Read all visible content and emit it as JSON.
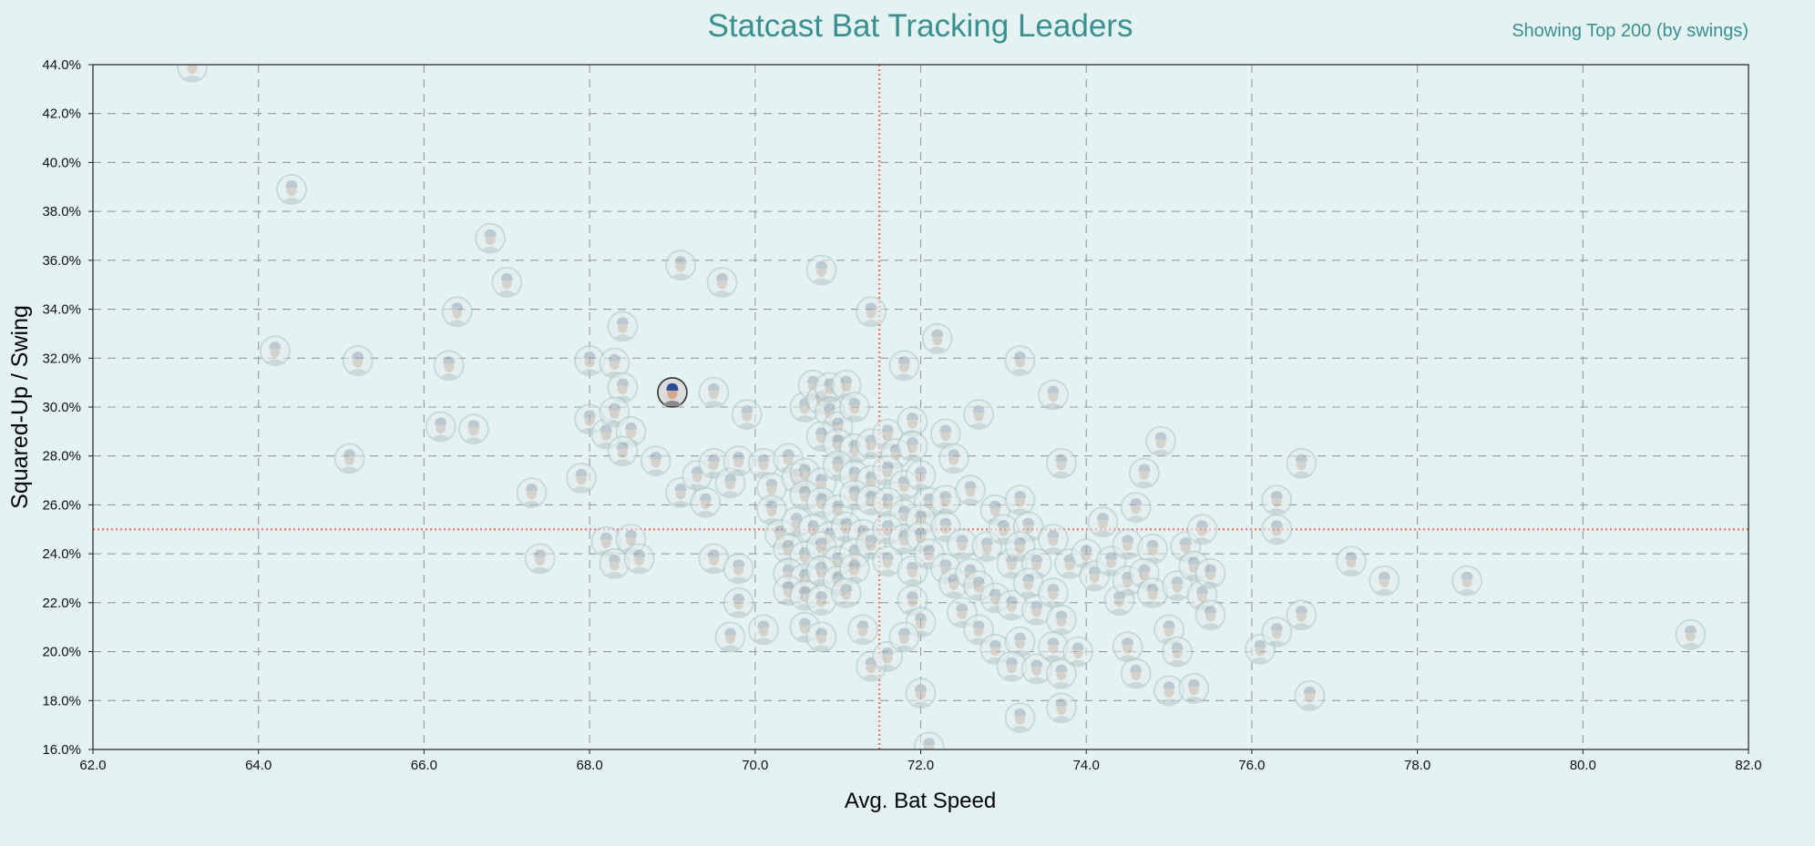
{
  "chart_data": {
    "type": "scatter",
    "title": "Statcast Bat Tracking Leaders",
    "subtitle": "Showing Top 200 (by swings)",
    "xlabel": "Avg. Bat Speed",
    "ylabel": "Squared-Up / Swing",
    "xlim": [
      62,
      82
    ],
    "ylim": [
      16,
      44
    ],
    "x_ticks": [
      "62.0",
      "64.0",
      "66.0",
      "68.0",
      "70.0",
      "72.0",
      "74.0",
      "76.0",
      "78.0",
      "80.0",
      "82.0"
    ],
    "y_ticks": [
      "16.0%",
      "18.0%",
      "20.0%",
      "22.0%",
      "24.0%",
      "26.0%",
      "28.0%",
      "30.0%",
      "32.0%",
      "34.0%",
      "36.0%",
      "38.0%",
      "40.0%",
      "42.0%",
      "44.0%"
    ],
    "grid": true,
    "reference_lines": {
      "x": 71.5,
      "y": 25.0
    },
    "colors": {
      "title": "#3a9090",
      "reference_line": "#f07a70",
      "grid": "#999999",
      "marker_ring": "#a8c8c8",
      "highlight_ring": "#333333",
      "highlight_cap": "#2a4a9a"
    },
    "highlighted_point": {
      "x": 69.0,
      "y": 30.6
    },
    "points": [
      [
        63.2,
        43.9
      ],
      [
        64.4,
        38.9
      ],
      [
        66.8,
        36.9
      ],
      [
        67.0,
        35.1
      ],
      [
        66.4,
        33.9
      ],
      [
        64.2,
        32.3
      ],
      [
        65.2,
        31.9
      ],
      [
        66.3,
        31.7
      ],
      [
        65.1,
        27.9
      ],
      [
        66.2,
        29.2
      ],
      [
        66.6,
        29.1
      ],
      [
        67.3,
        26.5
      ],
      [
        67.4,
        23.8
      ],
      [
        67.9,
        27.1
      ],
      [
        68.0,
        31.9
      ],
      [
        68.3,
        31.8
      ],
      [
        68.4,
        33.3
      ],
      [
        68.4,
        30.8
      ],
      [
        68.0,
        29.5
      ],
      [
        68.2,
        28.9
      ],
      [
        68.3,
        29.8
      ],
      [
        68.5,
        29.0
      ],
      [
        68.4,
        28.2
      ],
      [
        68.8,
        27.8
      ],
      [
        68.2,
        24.5
      ],
      [
        68.5,
        24.6
      ],
      [
        68.3,
        23.6
      ],
      [
        68.6,
        23.8
      ],
      [
        69.1,
        35.8
      ],
      [
        69.6,
        35.1
      ],
      [
        70.8,
        35.6
      ],
      [
        71.4,
        33.9
      ],
      [
        72.2,
        32.8
      ],
      [
        73.2,
        31.9
      ],
      [
        73.6,
        30.5
      ],
      [
        72.7,
        29.7
      ],
      [
        72.3,
        28.9
      ],
      [
        71.8,
        31.7
      ],
      [
        69.5,
        30.6
      ],
      [
        69.9,
        29.7
      ],
      [
        69.1,
        26.5
      ],
      [
        69.3,
        27.2
      ],
      [
        69.5,
        27.7
      ],
      [
        69.7,
        26.9
      ],
      [
        69.8,
        27.8
      ],
      [
        69.4,
        26.1
      ],
      [
        69.5,
        23.8
      ],
      [
        69.8,
        23.4
      ],
      [
        69.8,
        22.0
      ],
      [
        69.7,
        20.6
      ],
      [
        70.1,
        20.9
      ],
      [
        70.1,
        27.7
      ],
      [
        70.2,
        26.7
      ],
      [
        70.2,
        25.8
      ],
      [
        70.3,
        24.8
      ],
      [
        70.4,
        27.9
      ],
      [
        70.5,
        27.1
      ],
      [
        70.6,
        30.0
      ],
      [
        70.7,
        30.9
      ],
      [
        70.8,
        30.3
      ],
      [
        70.9,
        29.8
      ],
      [
        70.9,
        30.8
      ],
      [
        71.0,
        29.2
      ],
      [
        71.1,
        30.9
      ],
      [
        71.2,
        30.0
      ],
      [
        70.8,
        28.8
      ],
      [
        71.0,
        28.5
      ],
      [
        71.2,
        28.3
      ],
      [
        71.4,
        28.5
      ],
      [
        70.6,
        27.3
      ],
      [
        70.8,
        26.9
      ],
      [
        71.0,
        27.6
      ],
      [
        71.2,
        27.2
      ],
      [
        71.4,
        27.0
      ],
      [
        70.6,
        26.4
      ],
      [
        70.8,
        26.1
      ],
      [
        71.0,
        25.8
      ],
      [
        71.2,
        26.4
      ],
      [
        71.4,
        26.2
      ],
      [
        70.5,
        25.3
      ],
      [
        70.7,
        25.0
      ],
      [
        70.9,
        24.7
      ],
      [
        71.1,
        25.1
      ],
      [
        71.3,
        24.8
      ],
      [
        70.4,
        24.2
      ],
      [
        70.6,
        23.9
      ],
      [
        70.8,
        24.3
      ],
      [
        71.0,
        23.7
      ],
      [
        71.2,
        24.0
      ],
      [
        71.4,
        24.4
      ],
      [
        70.4,
        23.2
      ],
      [
        70.6,
        23.0
      ],
      [
        70.8,
        23.3
      ],
      [
        71.0,
        22.9
      ],
      [
        71.2,
        23.4
      ],
      [
        70.4,
        22.5
      ],
      [
        70.6,
        22.3
      ],
      [
        70.8,
        22.1
      ],
      [
        71.1,
        22.4
      ],
      [
        70.6,
        21.0
      ],
      [
        70.8,
        20.6
      ],
      [
        71.3,
        20.9
      ],
      [
        71.4,
        19.4
      ],
      [
        71.6,
        19.8
      ],
      [
        71.6,
        28.9
      ],
      [
        71.7,
        28.1
      ],
      [
        71.6,
        27.4
      ],
      [
        71.8,
        26.8
      ],
      [
        71.6,
        26.1
      ],
      [
        71.8,
        25.6
      ],
      [
        71.6,
        25.0
      ],
      [
        71.8,
        24.6
      ],
      [
        71.6,
        23.7
      ],
      [
        71.9,
        23.3
      ],
      [
        71.9,
        29.4
      ],
      [
        71.9,
        28.4
      ],
      [
        72.0,
        27.2
      ],
      [
        72.1,
        26.1
      ],
      [
        72.0,
        25.4
      ],
      [
        72.0,
        24.7
      ],
      [
        72.1,
        24.0
      ],
      [
        71.9,
        22.1
      ],
      [
        72.0,
        21.2
      ],
      [
        71.8,
        20.6
      ],
      [
        72.0,
        18.3
      ],
      [
        72.1,
        16.1
      ],
      [
        72.3,
        26.2
      ],
      [
        72.4,
        27.9
      ],
      [
        72.3,
        25.1
      ],
      [
        72.5,
        24.4
      ],
      [
        72.3,
        23.4
      ],
      [
        72.4,
        22.8
      ],
      [
        72.6,
        23.2
      ],
      [
        72.5,
        21.6
      ],
      [
        72.7,
        22.7
      ],
      [
        72.6,
        26.6
      ],
      [
        72.8,
        24.3
      ],
      [
        72.7,
        20.9
      ],
      [
        72.9,
        25.8
      ],
      [
        73.0,
        25.0
      ],
      [
        73.1,
        23.6
      ],
      [
        72.9,
        22.2
      ],
      [
        73.1,
        21.9
      ],
      [
        72.9,
        20.1
      ],
      [
        73.2,
        26.2
      ],
      [
        73.3,
        25.1
      ],
      [
        73.2,
        24.3
      ],
      [
        73.4,
        23.6
      ],
      [
        73.3,
        22.8
      ],
      [
        73.4,
        21.7
      ],
      [
        73.2,
        20.4
      ],
      [
        73.1,
        19.4
      ],
      [
        73.4,
        19.3
      ],
      [
        73.2,
        17.3
      ],
      [
        73.6,
        24.6
      ],
      [
        73.6,
        22.4
      ],
      [
        73.7,
        21.3
      ],
      [
        73.6,
        20.2
      ],
      [
        73.7,
        19.1
      ],
      [
        73.7,
        17.7
      ],
      [
        73.7,
        27.7
      ],
      [
        73.9,
        20.0
      ],
      [
        73.8,
        23.6
      ],
      [
        74.0,
        24.0
      ],
      [
        74.1,
        23.1
      ],
      [
        74.2,
        25.3
      ],
      [
        74.4,
        22.1
      ],
      [
        74.3,
        23.7
      ],
      [
        74.5,
        24.4
      ],
      [
        74.5,
        22.9
      ],
      [
        74.5,
        20.2
      ],
      [
        74.6,
        19.1
      ],
      [
        74.6,
        25.9
      ],
      [
        74.7,
        27.3
      ],
      [
        74.8,
        24.2
      ],
      [
        74.7,
        23.2
      ],
      [
        74.8,
        22.4
      ],
      [
        74.9,
        28.6
      ],
      [
        75.0,
        20.9
      ],
      [
        75.0,
        18.4
      ],
      [
        75.1,
        22.7
      ],
      [
        75.1,
        20.0
      ],
      [
        75.2,
        24.3
      ],
      [
        75.3,
        23.5
      ],
      [
        75.3,
        18.5
      ],
      [
        75.4,
        25.0
      ],
      [
        75.4,
        22.3
      ],
      [
        75.5,
        21.5
      ],
      [
        75.5,
        23.2
      ],
      [
        76.1,
        20.1
      ],
      [
        76.3,
        20.8
      ],
      [
        76.3,
        25.0
      ],
      [
        76.3,
        26.2
      ],
      [
        76.6,
        27.7
      ],
      [
        76.6,
        21.5
      ],
      [
        76.7,
        18.2
      ],
      [
        77.2,
        23.7
      ],
      [
        77.6,
        22.9
      ],
      [
        78.6,
        22.9
      ],
      [
        81.3,
        20.7
      ]
    ]
  }
}
